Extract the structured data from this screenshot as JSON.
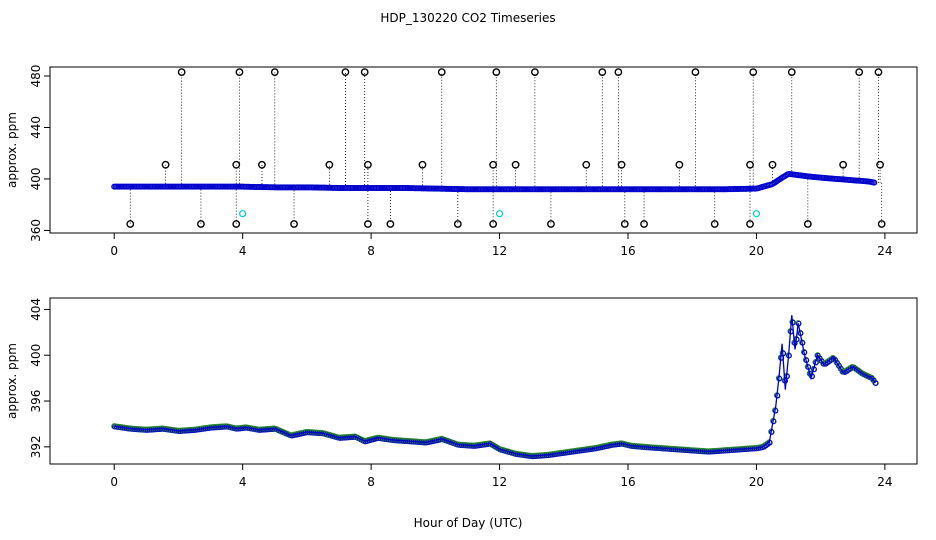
{
  "figure": {
    "title": "HDP_130220  CO2 Timeseries",
    "xlabel": "Hour of Day (UTC)"
  },
  "chart_data": [
    {
      "type": "scatter",
      "title": "",
      "ylabel": "approx. ppm",
      "xlim": [
        -2,
        25
      ],
      "ylim": [
        358,
        487
      ],
      "xticks": [
        0,
        4,
        8,
        12,
        16,
        20,
        24
      ],
      "yticks": [
        360,
        400,
        440,
        480
      ],
      "grid": false,
      "series": [
        {
          "kind": "main",
          "color": "#0000cc",
          "x": [
            0,
            1,
            2,
            3,
            4,
            5,
            6,
            7,
            8,
            9,
            10,
            11,
            12,
            13,
            14,
            15,
            16,
            17,
            18,
            19,
            20,
            20.5,
            20.8,
            21.0,
            21.3,
            21.6,
            22.0,
            22.5,
            23.0,
            23.5,
            23.7
          ],
          "y": [
            394,
            394,
            394,
            394,
            394,
            393.5,
            393.5,
            393,
            393,
            393,
            392.5,
            392,
            392,
            392,
            392,
            392,
            392,
            392,
            392,
            392,
            392.5,
            396,
            401,
            404,
            403,
            402,
            401,
            400,
            399,
            398,
            397
          ]
        },
        {
          "kind": "spikes-high",
          "color": "#000000",
          "x": [
            1.6,
            2.1,
            3.8,
            3.9,
            4.6,
            5.0,
            6.7,
            7.2,
            7.8,
            7.9,
            9.6,
            10.2,
            11.8,
            11.9,
            12.5,
            13.1,
            14.7,
            15.2,
            15.7,
            15.8,
            17.6,
            18.1,
            19.8,
            19.9,
            20.5,
            21.1,
            22.7,
            23.2,
            23.8,
            23.85
          ],
          "y": [
            411,
            483,
            411,
            483,
            411,
            483,
            411,
            483,
            483,
            411,
            411,
            483,
            411,
            483,
            411,
            483,
            411,
            483,
            483,
            411,
            411,
            483,
            411,
            483,
            411,
            483,
            411,
            483,
            483,
            411
          ]
        },
        {
          "kind": "spikes-low",
          "color": "#000000",
          "x": [
            0.5,
            2.7,
            3.8,
            5.6,
            7.9,
            8.6,
            10.7,
            11.8,
            13.6,
            15.9,
            16.5,
            18.7,
            19.8,
            21.6,
            23.9
          ],
          "y": [
            365,
            365,
            365,
            365,
            365,
            365,
            365,
            365,
            365,
            365,
            365,
            365,
            365,
            365,
            365
          ]
        },
        {
          "kind": "flagged",
          "color": "#00cccc",
          "x": [
            4.0,
            12.0,
            20.0
          ],
          "y": [
            373,
            373,
            373
          ]
        }
      ]
    },
    {
      "type": "line",
      "title": "",
      "ylabel": "approx. ppm",
      "xlim": [
        -2,
        25
      ],
      "ylim": [
        390.5,
        405
      ],
      "xticks": [
        0,
        4,
        8,
        12,
        16,
        20,
        24
      ],
      "yticks": [
        392,
        396,
        400,
        404
      ],
      "grid": false,
      "series": [
        {
          "color": "#0000cc",
          "x": [
            0,
            0.5,
            1,
            1.5,
            2,
            2.5,
            3,
            3.5,
            3.8,
            4.1,
            4.5,
            5,
            5.5,
            6,
            6.5,
            7,
            7.5,
            7.8,
            8.2,
            8.7,
            9.2,
            9.7,
            10.2,
            10.7,
            11.2,
            11.7,
            12,
            12.5,
            13,
            13.5,
            14,
            14.5,
            15,
            15.5,
            15.8,
            16.1,
            16.5,
            17,
            17.5,
            18,
            18.5,
            19,
            19.5,
            20,
            20.2,
            20.4,
            20.6,
            20.7,
            20.8,
            20.9,
            21.0,
            21.1,
            21.2,
            21.3,
            21.5,
            21.7,
            21.9,
            22.1,
            22.4,
            22.7,
            23.0,
            23.3,
            23.6,
            23.7
          ],
          "y": [
            393.8,
            393.6,
            393.5,
            393.6,
            393.4,
            393.5,
            393.7,
            393.8,
            393.6,
            393.7,
            393.5,
            393.6,
            393.0,
            393.3,
            393.2,
            392.8,
            392.9,
            392.5,
            392.8,
            392.6,
            392.5,
            392.4,
            392.7,
            392.2,
            392.1,
            392.3,
            391.8,
            391.4,
            391.2,
            391.3,
            391.5,
            391.7,
            391.9,
            392.2,
            392.3,
            392.1,
            392.0,
            391.9,
            391.8,
            391.7,
            391.6,
            391.7,
            391.8,
            391.9,
            392.0,
            392.4,
            395.5,
            398.0,
            401.0,
            397.0,
            400.0,
            403.5,
            400.5,
            402.8,
            400.0,
            398.0,
            400.0,
            399.2,
            399.8,
            398.5,
            399.0,
            398.4,
            398.0,
            397.6
          ]
        }
      ]
    }
  ]
}
